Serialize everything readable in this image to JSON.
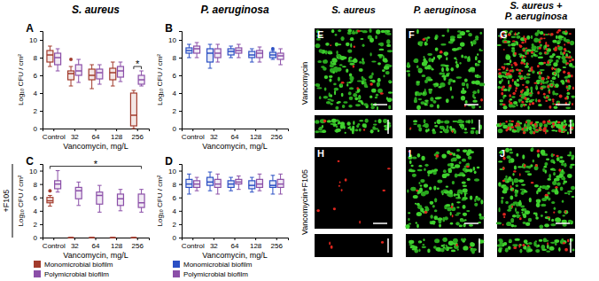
{
  "figure": {
    "column_titles": [
      "S. aureus",
      "P. aeruginosa"
    ],
    "side_label": "+F105",
    "image_column_titles": [
      [
        "S. aureus"
      ],
      [
        "P. aeruginosa"
      ],
      [
        "S. aureus +",
        "P. aeruginosa"
      ]
    ],
    "image_row_titles": [
      "Vancomycin",
      "Vancomycin+F105"
    ],
    "image_panels": [
      "E",
      "F",
      "G",
      "H",
      "I",
      "J"
    ]
  },
  "chart_data": [
    {
      "type": "box",
      "title": "A",
      "x_label": "Vancomycin, mg/L",
      "y_label": "Log₁₀ CFU / cm²",
      "categories": [
        "Control",
        "32",
        "64",
        "128",
        "256"
      ],
      "ylim": [
        0,
        11
      ],
      "yticks": [
        0,
        2,
        4,
        6,
        8,
        10
      ],
      "series": [
        {
          "name": "Monomicrobial biofilm",
          "color": "#a23b2c",
          "values": [
            {
              "min": 7,
              "q1": 7.5,
              "median": 8.3,
              "q3": 8.8,
              "max": 9.3
            },
            {
              "min": 4.8,
              "q1": 5.5,
              "median": 6.2,
              "q3": 6.5,
              "max": 7
            },
            {
              "min": 4.5,
              "q1": 5.5,
              "median": 6,
              "q3": 6.7,
              "max": 7.2
            },
            {
              "min": 4.8,
              "q1": 5.5,
              "median": 6.3,
              "q3": 6.8,
              "max": 7.5
            },
            {
              "min": 0,
              "q1": 0.3,
              "median": 1.5,
              "q3": 4,
              "max": 4.3
            }
          ],
          "outliers": [
            [],
            [
              7.8
            ],
            [],
            [],
            []
          ]
        },
        {
          "name": "Polymicrobial biofilm",
          "color": "#8b4fa8",
          "values": [
            {
              "min": 6.5,
              "q1": 7.2,
              "median": 8,
              "q3": 8.5,
              "max": 9
            },
            {
              "min": 5.2,
              "q1": 6,
              "median": 6.5,
              "q3": 7.2,
              "max": 7.8
            },
            {
              "min": 5,
              "q1": 5.6,
              "median": 6.3,
              "q3": 6.7,
              "max": 7.2
            },
            {
              "min": 5.3,
              "q1": 5.8,
              "median": 6.5,
              "q3": 7,
              "max": 7.5
            },
            {
              "min": 4.8,
              "q1": 5,
              "median": 5.5,
              "q3": 6,
              "max": 6.5
            }
          ],
          "outliers": [
            [],
            [],
            [],
            [],
            []
          ]
        }
      ],
      "annotations": [
        {
          "text": "*",
          "categories": [
            "256"
          ]
        }
      ]
    },
    {
      "type": "box",
      "title": "B",
      "x_label": "Vancomycin, mg/L",
      "y_label": "Log₁₀ CFU / cm²",
      "categories": [
        "Control",
        "32",
        "64",
        "128",
        "256"
      ],
      "ylim": [
        0,
        11
      ],
      "yticks": [
        0,
        2,
        4,
        6,
        8,
        10
      ],
      "series": [
        {
          "name": "Monomicrobial biofilm",
          "color": "#2b4fc4",
          "values": [
            {
              "min": 8,
              "q1": 8.5,
              "median": 8.8,
              "q3": 9.1,
              "max": 9.5
            },
            {
              "min": 6.8,
              "q1": 7.5,
              "median": 8.5,
              "q3": 9,
              "max": 9.5
            },
            {
              "min": 8,
              "q1": 8.3,
              "median": 8.7,
              "q3": 9,
              "max": 9.3
            },
            {
              "min": 7.5,
              "q1": 8,
              "median": 8.3,
              "q3": 8.7,
              "max": 9
            },
            {
              "min": 7.8,
              "q1": 8,
              "median": 8.3,
              "q3": 8.6,
              "max": 8.8
            }
          ],
          "outliers": [
            [],
            [],
            [],
            [],
            [
              9
            ]
          ]
        },
        {
          "name": "Polymicrobial biofilm",
          "color": "#8b4fa8",
          "values": [
            {
              "min": 8,
              "q1": 8.5,
              "median": 9,
              "q3": 9.3,
              "max": 9.7
            },
            {
              "min": 7.5,
              "q1": 8,
              "median": 8.5,
              "q3": 9,
              "max": 9.5
            },
            {
              "min": 8,
              "q1": 8.5,
              "median": 8.8,
              "q3": 9.1,
              "max": 9.5
            },
            {
              "min": 7.5,
              "q1": 8,
              "median": 8.5,
              "q3": 8.8,
              "max": 9.2
            },
            {
              "min": 7.2,
              "q1": 7.8,
              "median": 8.2,
              "q3": 8.5,
              "max": 9
            }
          ],
          "outliers": [
            [],
            [],
            [],
            [],
            []
          ]
        }
      ]
    },
    {
      "type": "box",
      "title": "C",
      "x_label": "Vancomycin, mg/L",
      "y_label": "Log₁₀ CFU / cm²",
      "categories": [
        "Control",
        "32",
        "64",
        "128",
        "256"
      ],
      "ylim": [
        0,
        11
      ],
      "yticks": [
        0,
        2,
        4,
        6,
        8,
        10
      ],
      "legend": "bottom-left",
      "series": [
        {
          "name": "Monomicrobial biofilm",
          "color": "#a23b2c",
          "values": [
            {
              "min": 4.7,
              "q1": 5.2,
              "median": 5.5,
              "q3": 6,
              "max": 6.3
            },
            {
              "min": 0,
              "q1": 0,
              "median": 0,
              "q3": 0,
              "max": 0
            },
            {
              "min": 0,
              "q1": 0,
              "median": 0,
              "q3": 0,
              "max": 0
            },
            {
              "min": 0,
              "q1": 0,
              "median": 0,
              "q3": 0,
              "max": 0
            },
            {
              "min": 0,
              "q1": 0,
              "median": 0,
              "q3": 0,
              "max": 0
            }
          ],
          "outliers": [
            [
              7
            ],
            [],
            [],
            [],
            []
          ]
        },
        {
          "name": "Polymicrobial biofilm",
          "color": "#8b4fa8",
          "values": [
            {
              "min": 6.8,
              "q1": 7.3,
              "median": 8,
              "q3": 8.5,
              "max": 10
            },
            {
              "min": 4.8,
              "q1": 5.8,
              "median": 7,
              "q3": 7.5,
              "max": 8.3
            },
            {
              "min": 3.8,
              "q1": 5,
              "median": 6.3,
              "q3": 6.8,
              "max": 7.8
            },
            {
              "min": 4,
              "q1": 4.8,
              "median": 5.8,
              "q3": 6.5,
              "max": 7.2
            },
            {
              "min": 3.8,
              "q1": 4.5,
              "median": 5.2,
              "q3": 6.5,
              "max": 7.2
            }
          ],
          "outliers": [
            [],
            [],
            [],
            [],
            []
          ]
        }
      ],
      "annotations": [
        {
          "text": "*",
          "categories": [
            "Control",
            "256"
          ]
        }
      ]
    },
    {
      "type": "box",
      "title": "D",
      "x_label": "Vancomycin, mg/L",
      "y_label": "Log₁₀ CFU / cm²",
      "categories": [
        "Control",
        "32",
        "64",
        "128",
        "256"
      ],
      "ylim": [
        0,
        11
      ],
      "yticks": [
        0,
        2,
        4,
        6,
        8,
        10
      ],
      "legend": "bottom-left",
      "series": [
        {
          "name": "Monomicrobial biofilm",
          "color": "#2b4fc4",
          "values": [
            {
              "min": 6.5,
              "q1": 7.5,
              "median": 8,
              "q3": 8.7,
              "max": 9.5
            },
            {
              "min": 7,
              "q1": 7.8,
              "median": 8.3,
              "q3": 9,
              "max": 9.8
            },
            {
              "min": 7,
              "q1": 7.5,
              "median": 8,
              "q3": 8.5,
              "max": 9
            },
            {
              "min": 6.8,
              "q1": 7.3,
              "median": 7.8,
              "q3": 8.5,
              "max": 9
            },
            {
              "min": 6.5,
              "q1": 7.5,
              "median": 7.8,
              "q3": 8.5,
              "max": 9.3
            }
          ],
          "outliers": [
            [],
            [],
            [],
            [],
            []
          ]
        },
        {
          "name": "Polymicrobial biofilm",
          "color": "#8b4fa8",
          "values": [
            {
              "min": 7,
              "q1": 7.5,
              "median": 8,
              "q3": 8.5,
              "max": 9
            },
            {
              "min": 6.5,
              "q1": 7.5,
              "median": 8,
              "q3": 8.7,
              "max": 9.5
            },
            {
              "min": 7.2,
              "q1": 8,
              "median": 8.3,
              "q3": 8.7,
              "max": 9.2
            },
            {
              "min": 7,
              "q1": 7.5,
              "median": 8,
              "q3": 8.7,
              "max": 9.5
            },
            {
              "min": 6.5,
              "q1": 7.5,
              "median": 8,
              "q3": 8.7,
              "max": 9.5
            }
          ],
          "outliers": [
            [],
            [],
            [],
            [],
            []
          ]
        }
      ]
    }
  ]
}
